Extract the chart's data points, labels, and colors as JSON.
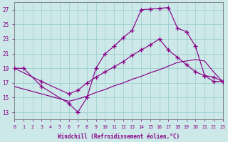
{
  "bg_color": "#cce8e8",
  "grid_color": "#99cccc",
  "line_color": "#880088",
  "xlabel": "Windchill (Refroidissement éolien,°C)",
  "xlim": [
    0,
    23
  ],
  "ylim": [
    12,
    28
  ],
  "yticks": [
    13,
    15,
    17,
    19,
    21,
    23,
    25,
    27
  ],
  "xticks": [
    0,
    1,
    2,
    3,
    4,
    5,
    6,
    7,
    8,
    9,
    10,
    11,
    12,
    13,
    14,
    15,
    16,
    17,
    18,
    19,
    20,
    21,
    22,
    23
  ],
  "curve1_x": [
    0,
    1,
    3,
    6,
    7,
    8,
    9,
    10,
    11,
    12,
    13,
    14,
    15,
    16,
    17,
    18,
    19,
    20,
    21,
    22,
    23
  ],
  "curve1_y": [
    19,
    19,
    16.5,
    14.2,
    13.0,
    15.0,
    19.0,
    21.0,
    22.0,
    23.2,
    24.2,
    27.0,
    27.1,
    27.2,
    27.3,
    24.5,
    24.0,
    22.0,
    18.0,
    17.2,
    17.2
  ],
  "curve2_x": [
    0,
    3,
    6,
    7,
    8,
    9,
    10,
    11,
    12,
    13,
    14,
    15,
    16,
    17,
    18,
    19,
    20,
    21,
    22,
    23
  ],
  "curve2_y": [
    19,
    17.2,
    15.5,
    16.0,
    17.0,
    17.8,
    18.5,
    19.2,
    19.9,
    20.8,
    21.5,
    22.2,
    23.0,
    21.5,
    20.5,
    19.5,
    18.5,
    18.0,
    17.8,
    17.2
  ],
  "curve3_x": [
    0,
    3,
    6,
    7,
    8,
    9,
    10,
    11,
    12,
    13,
    14,
    15,
    16,
    17,
    18,
    19,
    20,
    21,
    22,
    23
  ],
  "curve3_y": [
    16.5,
    15.5,
    14.5,
    14.8,
    15.2,
    15.7,
    16.1,
    16.6,
    17.0,
    17.5,
    17.9,
    18.4,
    18.8,
    19.3,
    19.8,
    20.0,
    20.2,
    20.0,
    18.5,
    17.2
  ]
}
